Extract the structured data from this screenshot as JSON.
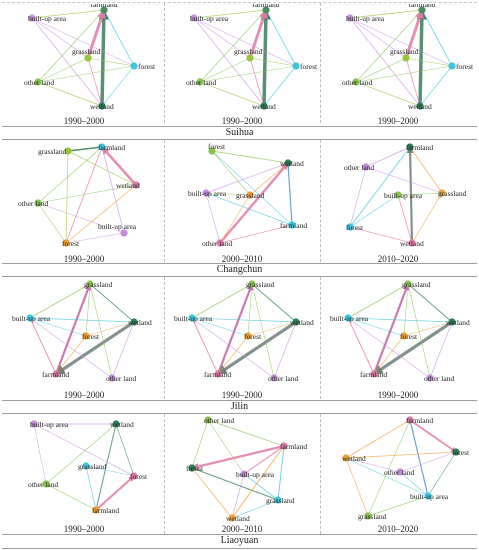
{
  "colors": {
    "farmland": "#4e8a5a",
    "forest": "#3ec6e0",
    "grassland": "#9ac43a",
    "wetland": "#2e7d55",
    "built_up": "#c58be0",
    "other_land": "#86c34b",
    "pink_flow": "#e07aa6",
    "grey_flow": "#6f7f79"
  },
  "regions": [
    {
      "name": "Suihua",
      "panels": [
        {
          "period": "1990–2000",
          "nodes": [
            {
              "label": "farmland",
              "color": "#4e8a5a"
            },
            {
              "label": "built-up area",
              "color": "#c58be0"
            },
            {
              "label": "grassland",
              "color": "#9ac43a"
            },
            {
              "label": "forest",
              "color": "#3ec6e0"
            },
            {
              "label": "other land",
              "color": "#86c34b"
            },
            {
              "label": "wetland",
              "color": "#2e7d55"
            }
          ]
        },
        {
          "period": "1990–2000",
          "nodes": [
            {
              "label": "farmland",
              "color": "#4e8a5a"
            },
            {
              "label": "built-up area",
              "color": "#c58be0"
            },
            {
              "label": "grassland",
              "color": "#9ac43a"
            },
            {
              "label": "forest",
              "color": "#3ec6e0"
            },
            {
              "label": "other land",
              "color": "#86c34b"
            },
            {
              "label": "wetland",
              "color": "#2e7d55"
            }
          ]
        },
        {
          "period": "1990–2000",
          "nodes": [
            {
              "label": "farmland",
              "color": "#4e8a5a"
            },
            {
              "label": "built-up area",
              "color": "#c58be0"
            },
            {
              "label": "grassland",
              "color": "#9ac43a"
            },
            {
              "label": "forest",
              "color": "#3ec6e0"
            },
            {
              "label": "other land",
              "color": "#86c34b"
            },
            {
              "label": "wetland",
              "color": "#2e7d55"
            }
          ]
        }
      ]
    },
    {
      "name": "Changchun",
      "panels": [
        {
          "period": "1990–2000",
          "nodes": [
            {
              "label": "grassland",
              "color": "#9ac43a"
            },
            {
              "label": "farmland",
              "color": "#3ec6e0"
            },
            {
              "label": "wetland",
              "color": "#e07aa6"
            },
            {
              "label": "other land",
              "color": "#86c34b"
            },
            {
              "label": "built-up area",
              "color": "#c58be0"
            },
            {
              "label": "forest",
              "color": "#f0a030"
            }
          ]
        },
        {
          "period": "2000–2010",
          "nodes": [
            {
              "label": "forest",
              "color": "#86c34b"
            },
            {
              "label": "wetland",
              "color": "#2e7d55"
            },
            {
              "label": "built-up area",
              "color": "#c58be0"
            },
            {
              "label": "grassland",
              "color": "#f0a030"
            },
            {
              "label": "farmland",
              "color": "#3ec6e0"
            },
            {
              "label": "other land",
              "color": "#e07aa6"
            }
          ]
        },
        {
          "period": "2010–2020",
          "nodes": [
            {
              "label": "other land",
              "color": "#c58be0"
            },
            {
              "label": "farmland",
              "color": "#2e7d55"
            },
            {
              "label": "built-up area",
              "color": "#86c34b"
            },
            {
              "label": "grassland",
              "color": "#f0a030"
            },
            {
              "label": "forest",
              "color": "#3ec6e0"
            },
            {
              "label": "wetland",
              "color": "#e07aa6"
            }
          ]
        }
      ]
    },
    {
      "name": "Jilin",
      "panels": [
        {
          "period": "1990–2000",
          "nodes": [
            {
              "label": "grassland",
              "color": "#86c34b"
            },
            {
              "label": "built-up area",
              "color": "#3ec6e0"
            },
            {
              "label": "forest",
              "color": "#f0a030"
            },
            {
              "label": "wetland",
              "color": "#2e7d55"
            },
            {
              "label": "farmland",
              "color": "#e07aa6"
            },
            {
              "label": "other land",
              "color": "#c58be0"
            }
          ]
        },
        {
          "period": "1990–2000",
          "nodes": [
            {
              "label": "grassland",
              "color": "#86c34b"
            },
            {
              "label": "built-up area",
              "color": "#3ec6e0"
            },
            {
              "label": "forest",
              "color": "#f0a030"
            },
            {
              "label": "wetland",
              "color": "#2e7d55"
            },
            {
              "label": "farmland",
              "color": "#e07aa6"
            },
            {
              "label": "other land",
              "color": "#c58be0"
            }
          ]
        },
        {
          "period": "1990–2000",
          "nodes": [
            {
              "label": "grassland",
              "color": "#86c34b"
            },
            {
              "label": "built-up area",
              "color": "#3ec6e0"
            },
            {
              "label": "forest",
              "color": "#f0a030"
            },
            {
              "label": "wetland",
              "color": "#2e7d55"
            },
            {
              "label": "farmland",
              "color": "#e07aa6"
            },
            {
              "label": "other land",
              "color": "#c58be0"
            }
          ]
        }
      ]
    },
    {
      "name": "Liaoyuan",
      "panels": [
        {
          "period": "1990–2000",
          "nodes": [
            {
              "label": "built-up area",
              "color": "#c58be0"
            },
            {
              "label": "wetland",
              "color": "#2e7d55"
            },
            {
              "label": "grassland",
              "color": "#3ec6e0"
            },
            {
              "label": "forest",
              "color": "#e07aa6"
            },
            {
              "label": "other land",
              "color": "#86c34b"
            },
            {
              "label": "farmland",
              "color": "#f0a030"
            }
          ]
        },
        {
          "period": "2000–2010",
          "nodes": [
            {
              "label": "other land",
              "color": "#86c34b"
            },
            {
              "label": "farmland",
              "color": "#e07aa6"
            },
            {
              "label": "forest",
              "color": "#2e7d55"
            },
            {
              "label": "built-up area",
              "color": "#c58be0"
            },
            {
              "label": "grassland",
              "color": "#3ec6e0"
            },
            {
              "label": "wetland",
              "color": "#f0a030"
            }
          ]
        },
        {
          "period": "2010–2020",
          "nodes": [
            {
              "label": "farmland",
              "color": "#e07aa6"
            },
            {
              "label": "wetland",
              "color": "#f0a030"
            },
            {
              "label": "forest",
              "color": "#2e7d55"
            },
            {
              "label": "other land",
              "color": "#c58be0"
            },
            {
              "label": "built-up area",
              "color": "#3ec6e0"
            },
            {
              "label": "grassland",
              "color": "#86c34b"
            }
          ]
        }
      ]
    }
  ]
}
